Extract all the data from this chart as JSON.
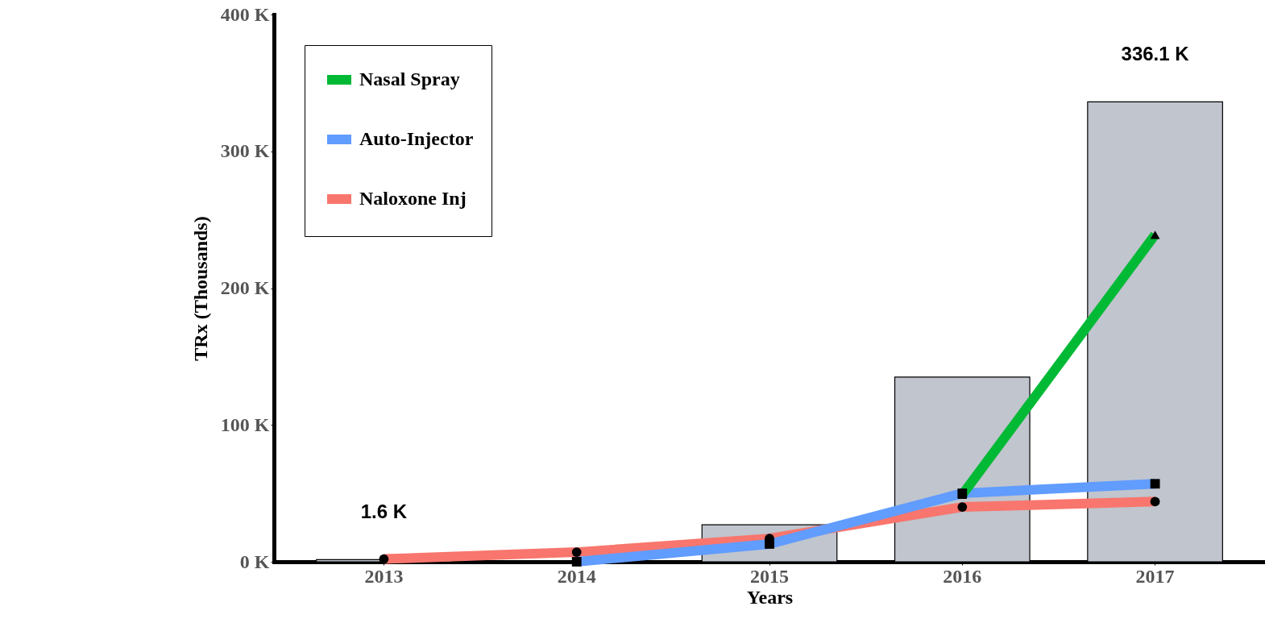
{
  "chart_data": {
    "type": "bar",
    "xlabel": "Years",
    "ylabel": "TRx (Thousands)",
    "categories": [
      "2013",
      "2014",
      "2015",
      "2016",
      "2017"
    ],
    "series": [
      {
        "color": "#c0c5ce",
        "values": [
          1.6,
          null,
          27,
          135,
          336.1
        ],
        "value_labels": [
          "1.6 K",
          null,
          null,
          null,
          "336.1 K"
        ]
      },
      {
        "type": "line",
        "name": "Nasal Spray",
        "color": "#00b935",
        "marker": "triangle",
        "values": [
          null,
          null,
          null,
          49,
          239
        ]
      },
      {
        "type": "line",
        "name": "Auto-Injector",
        "color": "#619cff",
        "marker": "square",
        "values": [
          null,
          0,
          13,
          50,
          57
        ]
      },
      {
        "type": "line",
        "name": "Naloxone Inj",
        "color": "#f8766d",
        "marker": "circle",
        "values": [
          2,
          7,
          17,
          40,
          44
        ]
      }
    ],
    "ylim": [
      0,
      400
    ],
    "yticks": [
      {
        "value": 0,
        "label": "0 K"
      },
      {
        "value": 100,
        "label": "100 K"
      },
      {
        "value": 200,
        "label": "200 K"
      },
      {
        "value": 300,
        "label": "300 K"
      },
      {
        "value": 400,
        "label": "400 K"
      }
    ],
    "grid": false,
    "legend": "top left"
  }
}
